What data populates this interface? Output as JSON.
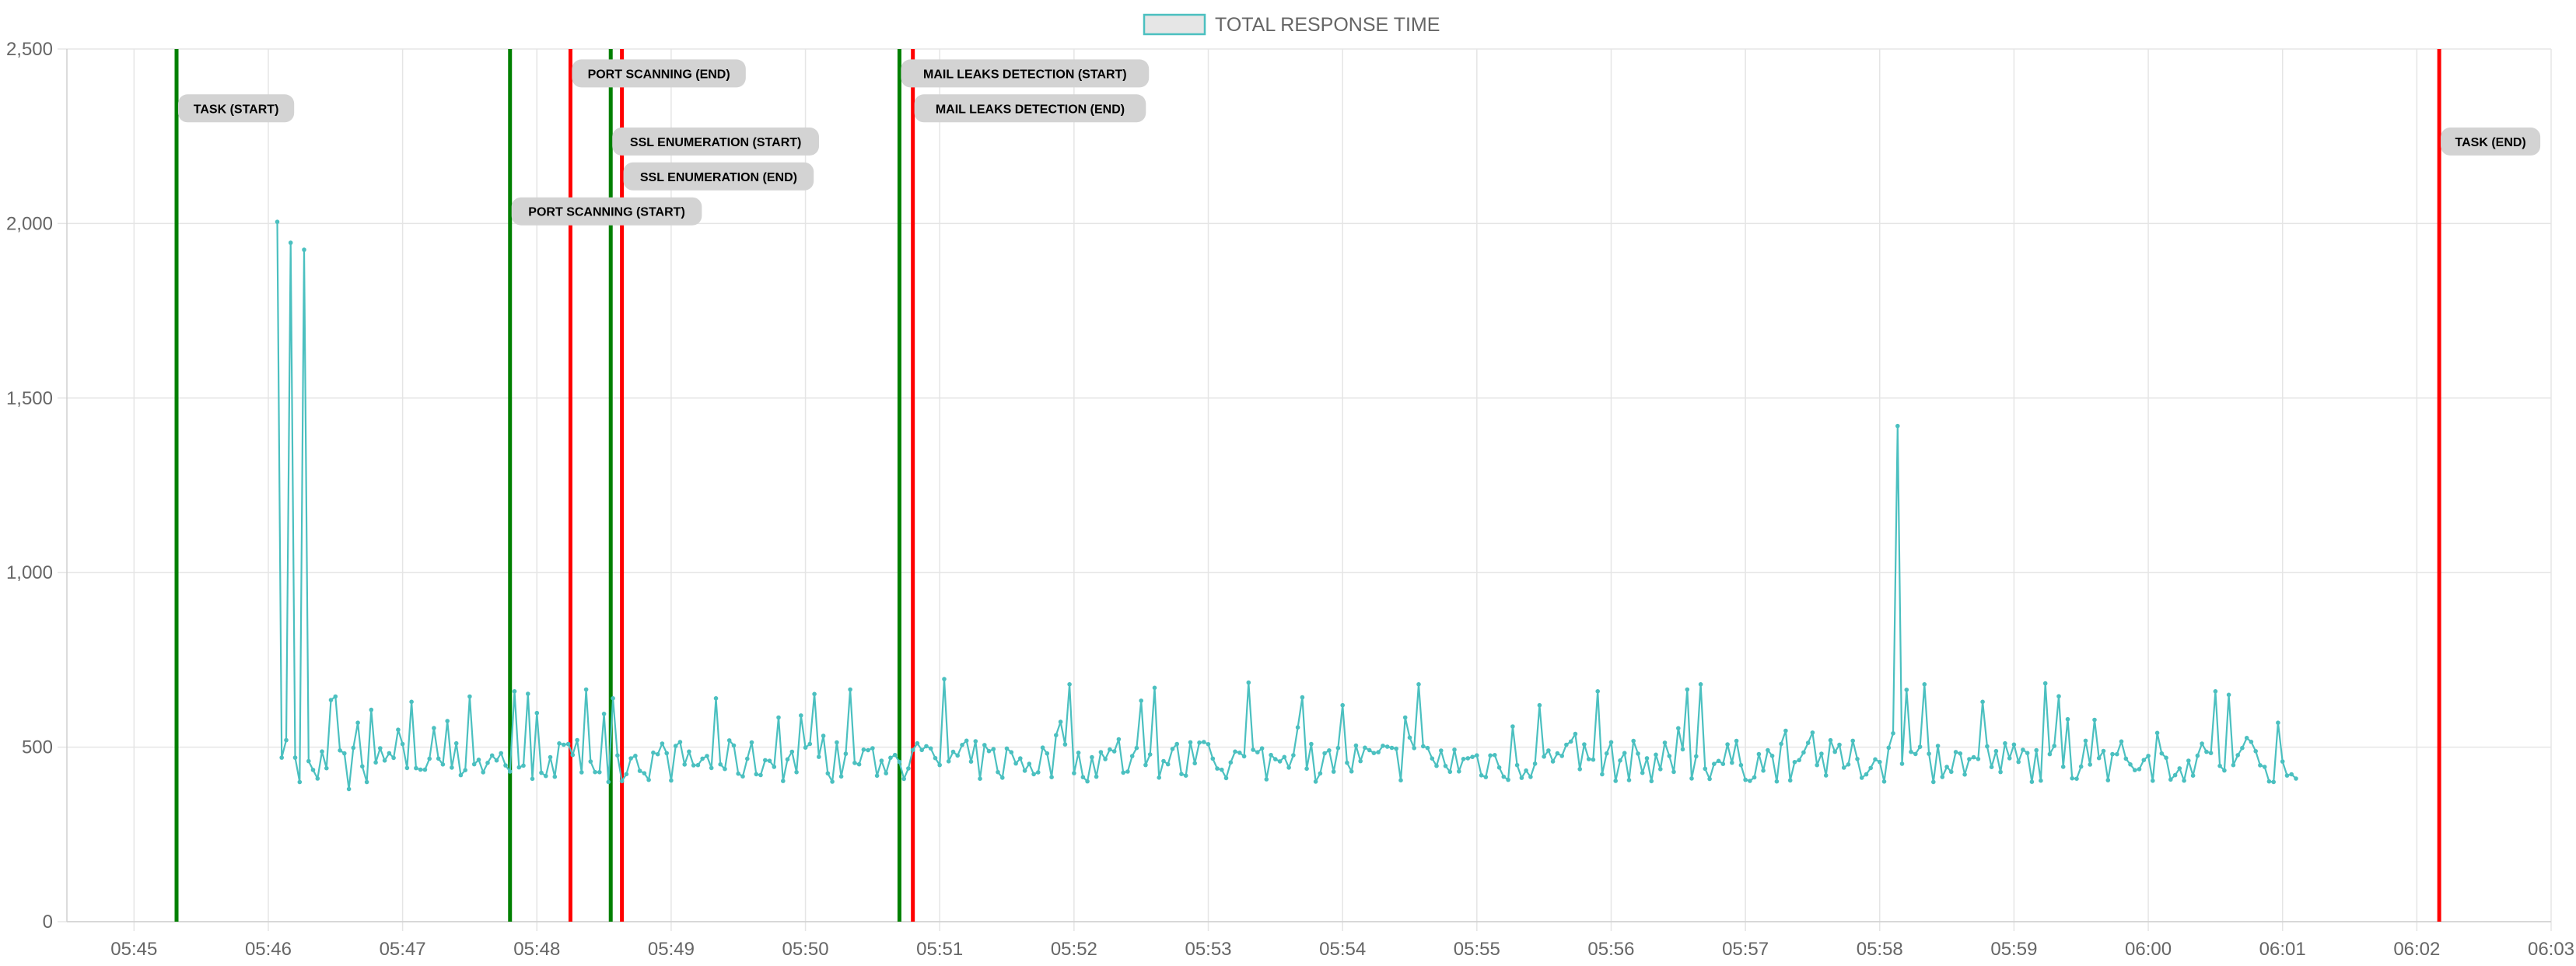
{
  "chart_data": {
    "type": "line",
    "legend": {
      "label": "TOTAL RESPONSE TIME",
      "placement": "top-center"
    },
    "series": [
      {
        "name": "TOTAL RESPONSE TIME",
        "color": "#4bc0c0",
        "x_start": "05:46:04",
        "x_end": "06:01:07",
        "seed": 7,
        "baseline": 460,
        "noise": 60,
        "spike_rate": 0.12,
        "spike_extra": 180,
        "points": [
          {
            "t": "05:46:04",
            "v": 2005
          },
          {
            "t": "05:46:06",
            "v": 470
          },
          {
            "t": "05:46:08",
            "v": 520
          },
          {
            "t": "05:46:11",
            "v": 1945
          },
          {
            "t": "05:46:13",
            "v": 470
          },
          {
            "t": "05:46:16",
            "v": 1925
          },
          {
            "t": "05:46:19",
            "v": 460
          },
          {
            "t": "05:46:22",
            "v": 410
          },
          {
            "t": "05:46:28",
            "v": 635
          },
          {
            "t": "05:46:31",
            "v": 645
          },
          {
            "t": "05:46:36",
            "v": 380
          },
          {
            "t": "05:46:40",
            "v": 570
          },
          {
            "t": "05:46:44",
            "v": 400
          },
          {
            "t": "05:46:58",
            "v": 550
          },
          {
            "t": "05:47:05",
            "v": 630
          },
          {
            "t": "05:47:30",
            "v": 645
          },
          {
            "t": "05:47:50",
            "v": 660
          },
          {
            "t": "05:48:08",
            "v": 415
          },
          {
            "t": "05:48:22",
            "v": 665
          },
          {
            "t": "05:48:34",
            "v": 640
          },
          {
            "t": "05:48:45",
            "v": 475
          },
          {
            "t": "05:49:20",
            "v": 640
          },
          {
            "t": "05:49:48",
            "v": 585
          },
          {
            "t": "05:50:20",
            "v": 665
          },
          {
            "t": "05:51:02",
            "v": 695
          },
          {
            "t": "05:51:58",
            "v": 680
          },
          {
            "t": "05:52:36",
            "v": 670
          },
          {
            "t": "05:53:18",
            "v": 685
          },
          {
            "t": "05:54:00",
            "v": 620
          },
          {
            "t": "05:54:28",
            "v": 585
          },
          {
            "t": "05:54:34",
            "v": 680
          },
          {
            "t": "05:55:28",
            "v": 620
          },
          {
            "t": "05:55:54",
            "v": 660
          },
          {
            "t": "05:56:35",
            "v": 665
          },
          {
            "t": "05:56:40",
            "v": 680
          },
          {
            "t": "05:58:08",
            "v": 1420
          },
          {
            "t": "05:58:20",
            "v": 680
          },
          {
            "t": "05:58:46",
            "v": 630
          },
          {
            "t": "05:59:24",
            "v": 580
          },
          {
            "t": "05:59:44",
            "v": 480
          },
          {
            "t": "06:00:30",
            "v": 660
          },
          {
            "t": "06:00:36",
            "v": 650
          },
          {
            "t": "06:00:58",
            "v": 570
          },
          {
            "t": "06:01:07",
            "v": 410
          }
        ]
      }
    ],
    "x_axis": {
      "type": "time",
      "min": "05:44:30",
      "max": "06:03:00",
      "ticks": [
        "05:45",
        "05:46",
        "05:47",
        "05:48",
        "05:49",
        "05:50",
        "05:51",
        "05:52",
        "05:53",
        "05:54",
        "05:55",
        "05:56",
        "05:57",
        "05:58",
        "05:59",
        "06:00",
        "06:01",
        "06:02",
        "06:03"
      ]
    },
    "y_axis": {
      "min": 0,
      "max": 2500,
      "ticks": [
        {
          "value": 0,
          "label": "0"
        },
        {
          "value": 500,
          "label": "500"
        },
        {
          "value": 1000,
          "label": "1,000"
        },
        {
          "value": 1500,
          "label": "1,500"
        },
        {
          "value": 2000,
          "label": "2,000"
        },
        {
          "value": 2500,
          "label": "2,500"
        }
      ]
    },
    "grid": true,
    "annotations": [
      {
        "label": "TASK (START)",
        "time": "05:45:19",
        "kind": "start",
        "color": "#008000",
        "label_y": 2330
      },
      {
        "label": "PORT SCANNING (START)",
        "time": "05:47:48",
        "kind": "start",
        "color": "#008000",
        "label_y": 2035
      },
      {
        "label": "PORT SCANNING (END)",
        "time": "05:48:15",
        "kind": "end",
        "color": "#ff0000",
        "label_y": 2430
      },
      {
        "label": "SSL ENUMERATION (START)",
        "time": "05:48:33",
        "kind": "start",
        "color": "#008000",
        "label_y": 2235
      },
      {
        "label": "SSL ENUMERATION (END)",
        "time": "05:48:38",
        "kind": "end",
        "color": "#ff0000",
        "label_y": 2135
      },
      {
        "label": "MAIL LEAKS DETECTION (START)",
        "time": "05:50:42",
        "kind": "start",
        "color": "#008000",
        "label_y": 2430
      },
      {
        "label": "MAIL LEAKS DETECTION (END)",
        "time": "05:50:48",
        "kind": "end",
        "color": "#ff0000",
        "label_y": 2330
      },
      {
        "label": "TASK (END)",
        "time": "06:02:10",
        "kind": "end",
        "color": "#ff0000",
        "label_y": 2235
      }
    ]
  }
}
